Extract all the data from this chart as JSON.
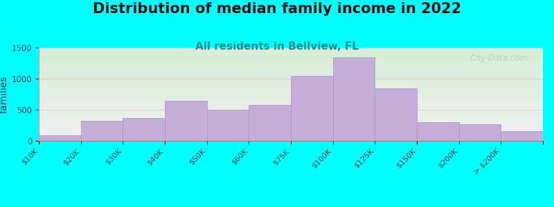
{
  "title": "Distribution of median family income in 2022",
  "subtitle": "All residents in Bellview, FL",
  "ylabel": "families",
  "categories": [
    "$10K",
    "$20K",
    "$30K",
    "$40K",
    "$50K",
    "$60K",
    "$75K",
    "$100K",
    "$125K",
    "$150K",
    "$200K",
    "> $200K"
  ],
  "values": [
    90,
    320,
    370,
    640,
    500,
    580,
    1050,
    1340,
    840,
    300,
    270,
    155
  ],
  "bar_color": "#c4aed8",
  "bar_edge_color": "#b090c8",
  "background_color": "#00ffff",
  "plot_bg_top": "#d6edd6",
  "plot_bg_bottom": "#f0f0f0",
  "ylim": [
    0,
    1500
  ],
  "yticks": [
    0,
    500,
    1000,
    1500
  ],
  "title_fontsize": 15,
  "subtitle_fontsize": 11,
  "ylabel_fontsize": 10,
  "watermark_text": "City-Data.com",
  "tick_label_fontsize": 8,
  "subtitle_color": "#2a8a8a"
}
